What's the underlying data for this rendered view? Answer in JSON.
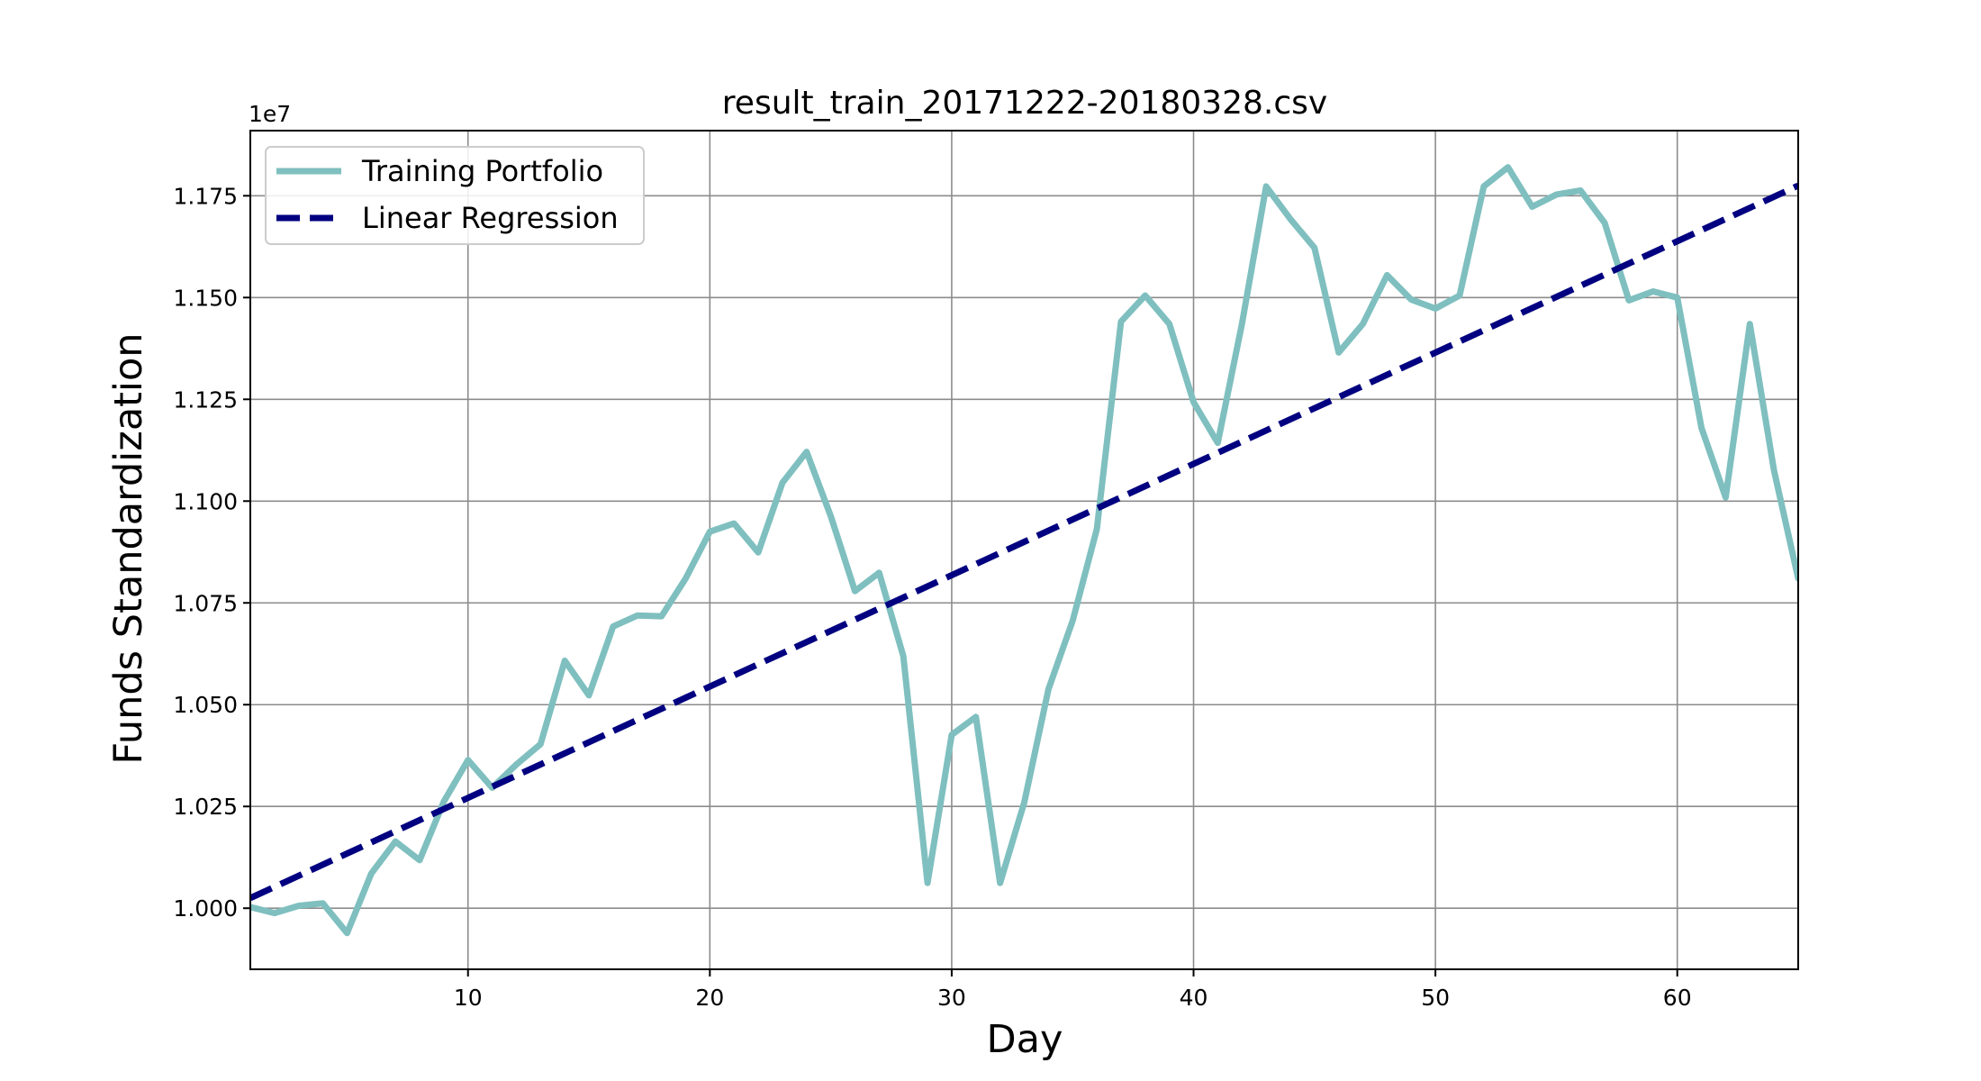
{
  "chart_data": {
    "type": "line",
    "title": "result_train_20171222-20180328.csv",
    "xlabel": "Day",
    "ylabel": "Funds Standardization",
    "y_offset_label": "1e7",
    "xlim": [
      1,
      65
    ],
    "ylim": [
      0.985,
      1.191
    ],
    "xticks": [
      10,
      20,
      30,
      40,
      50,
      60
    ],
    "yticks": [
      1.0,
      1.025,
      1.05,
      1.075,
      1.1,
      1.125,
      1.15,
      1.175
    ],
    "ytick_labels": [
      "1.000",
      "1.025",
      "1.050",
      "1.075",
      "1.100",
      "1.125",
      "1.150",
      "1.175"
    ],
    "grid": true,
    "legend_position": "upper-left",
    "series": [
      {
        "name": "Training Portfolio",
        "color": "#7fbfbf",
        "style": "solid",
        "x": [
          1,
          2,
          3,
          4,
          5,
          6,
          7,
          8,
          9,
          10,
          11,
          12,
          13,
          14,
          15,
          16,
          17,
          18,
          19,
          20,
          21,
          22,
          23,
          24,
          25,
          26,
          27,
          28,
          29,
          30,
          31,
          32,
          33,
          34,
          35,
          36,
          37,
          38,
          39,
          40,
          41,
          42,
          43,
          44,
          45,
          46,
          47,
          48,
          49,
          50,
          51,
          52,
          53,
          54,
          55,
          56,
          57,
          58,
          59,
          60,
          61,
          62,
          63,
          64,
          65
        ],
        "values": [
          1.0003,
          0.9988,
          1.0006,
          1.0012,
          0.9939,
          1.0085,
          1.0164,
          1.0118,
          1.0262,
          1.0364,
          1.0296,
          1.0353,
          1.0403,
          1.0608,
          1.0523,
          1.0692,
          1.0719,
          1.0717,
          1.081,
          1.0925,
          1.0945,
          1.0874,
          1.1045,
          1.1121,
          1.0963,
          1.0779,
          1.0824,
          1.0619,
          1.0062,
          1.0426,
          1.047,
          1.0062,
          1.026,
          1.0538,
          1.0706,
          1.0931,
          1.1441,
          1.1505,
          1.1435,
          1.1243,
          1.1143,
          1.1435,
          1.1773,
          1.1693,
          1.1622,
          1.1365,
          1.1435,
          1.1555,
          1.1495,
          1.1473,
          1.1505,
          1.1773,
          1.182,
          1.1723,
          1.1753,
          1.1763,
          1.1683,
          1.1493,
          1.1515,
          1.15,
          1.118,
          1.1009,
          1.1435,
          1.1075,
          1.081
        ]
      },
      {
        "name": "Linear Regression",
        "color": "#000080",
        "style": "dashed",
        "x": [
          1,
          65
        ],
        "values": [
          1.0025,
          1.1775
        ]
      }
    ]
  }
}
